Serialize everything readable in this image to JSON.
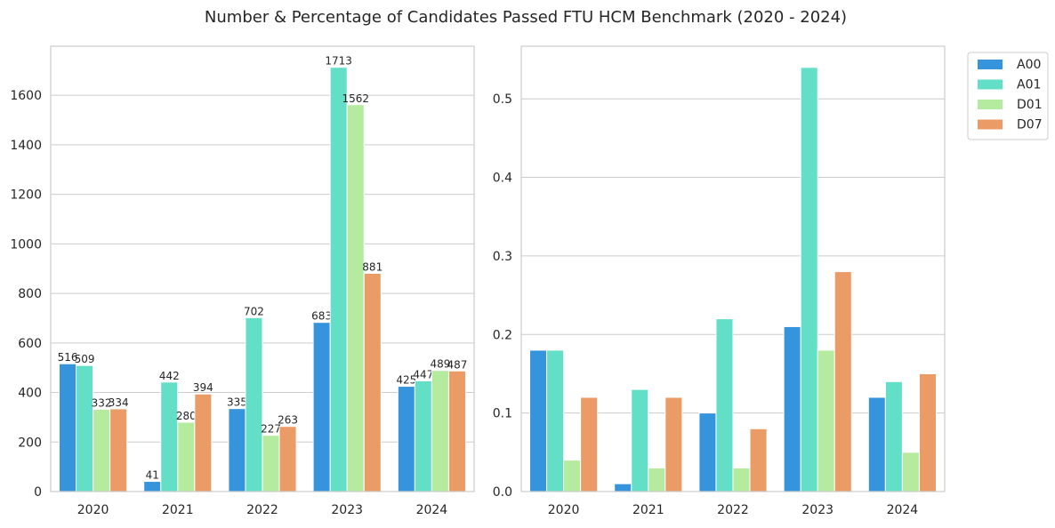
{
  "title": "Number & Percentage of Candidates Passed FTU HCM Benchmark (2020 - 2024)",
  "colors": {
    "A00": "#3594dc",
    "A01": "#63dfc7",
    "D01": "#b5eb9e",
    "D07": "#ea9b66"
  },
  "legend": {
    "placement": "outside-right",
    "entries": [
      "A00",
      "A01",
      "D01",
      "D07"
    ]
  },
  "chart_data": [
    {
      "type": "bar",
      "title": "",
      "xlabel": "",
      "ylabel": "",
      "categories": [
        "2020",
        "2021",
        "2022",
        "2023",
        "2024"
      ],
      "ylim": [
        0,
        1798
      ],
      "yticks": [
        0,
        200,
        400,
        600,
        800,
        1000,
        1200,
        1400,
        1600
      ],
      "ytick_labels": [
        "0",
        "200",
        "400",
        "600",
        "800",
        "1000",
        "1200",
        "1400",
        "1600"
      ],
      "grid": "y",
      "data_labels": true,
      "series": [
        {
          "name": "A00",
          "values": [
            516,
            41,
            335,
            683,
            425
          ],
          "labels": [
            "516",
            "41",
            "335",
            "683",
            "425"
          ]
        },
        {
          "name": "A01",
          "values": [
            509,
            442,
            702,
            1713,
            447
          ],
          "labels": [
            "509",
            "442",
            "702",
            "1713",
            "447"
          ]
        },
        {
          "name": "D01",
          "values": [
            332,
            280,
            227,
            1562,
            489
          ],
          "labels": [
            "332",
            "280",
            "227",
            "1562",
            "489"
          ]
        },
        {
          "name": "D07",
          "values": [
            334,
            394,
            263,
            881,
            487
          ],
          "labels": [
            "334",
            "394",
            "263",
            "881",
            "487"
          ]
        }
      ]
    },
    {
      "type": "bar",
      "title": "",
      "xlabel": "",
      "ylabel": "",
      "categories": [
        "2020",
        "2021",
        "2022",
        "2023",
        "2024"
      ],
      "ylim": [
        0,
        0.567
      ],
      "yticks": [
        0,
        0.1,
        0.2,
        0.3,
        0.4,
        0.5
      ],
      "ytick_labels": [
        "0.0",
        "0.1",
        "0.2",
        "0.3",
        "0.4",
        "0.5"
      ],
      "grid": "y",
      "data_labels": false,
      "series": [
        {
          "name": "A00",
          "values": [
            0.18,
            0.01,
            0.1,
            0.21,
            0.12
          ]
        },
        {
          "name": "A01",
          "values": [
            0.18,
            0.13,
            0.22,
            0.54,
            0.14
          ]
        },
        {
          "name": "D01",
          "values": [
            0.04,
            0.03,
            0.03,
            0.18,
            0.05
          ]
        },
        {
          "name": "D07",
          "values": [
            0.12,
            0.12,
            0.08,
            0.28,
            0.15
          ]
        }
      ]
    }
  ]
}
